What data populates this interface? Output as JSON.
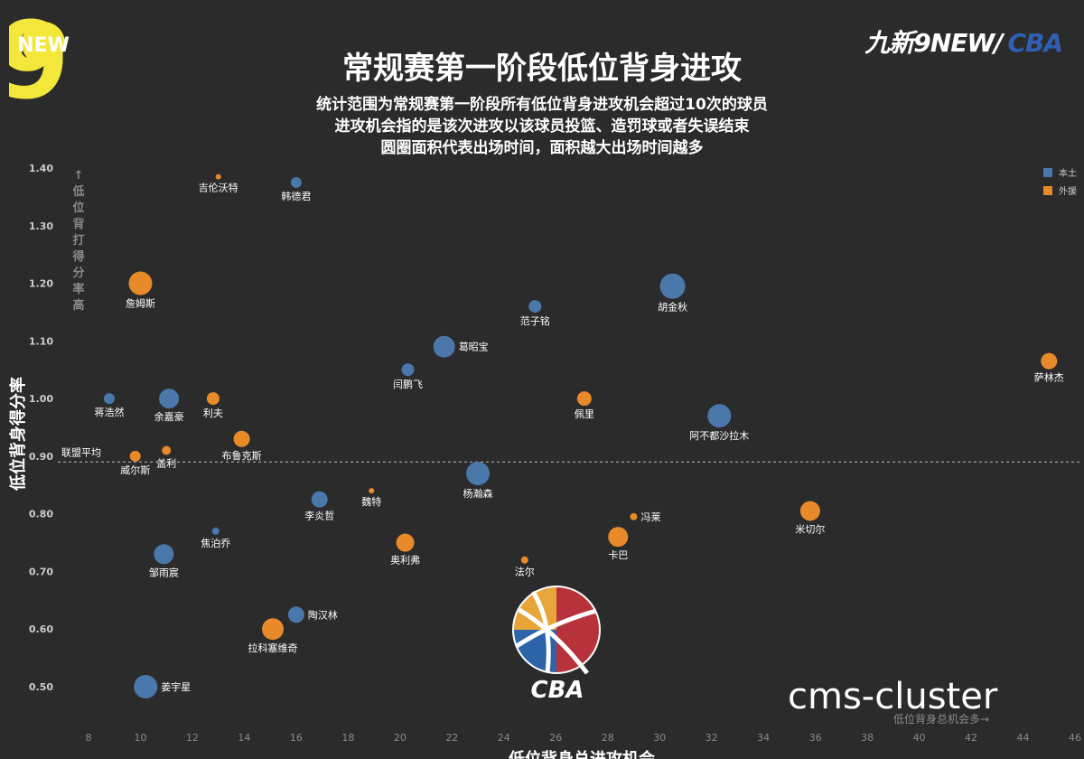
{
  "header": {
    "title": "常规赛第一阶段低位背身进攻",
    "subtitles": [
      "统计范围为常规赛第一阶段所有低位背身进攻机会超过10次的球员",
      "进攻机会指的是该次进攻以该球员投篮、造罚球或者失误结束",
      "圆圈面积代表出场时间，面积越大出场时间越多"
    ],
    "brand_prefix": "九新9NEW/",
    "brand_suffix": "CBA",
    "new9_logo_text": "NEW",
    "new9_logo_digit": "9"
  },
  "colors": {
    "background": "#2b2b2b",
    "domestic": "#4a78ab",
    "foreign": "#e8892a",
    "text": "#ffffff",
    "axis_text": "#cccccc",
    "dim_text": "#8a8a8a"
  },
  "chart_data": {
    "type": "scatter",
    "title": "常规赛第一阶段低位背身进攻",
    "xlabel": "低位背身总进攻机会",
    "ylabel": "低位背身得分率",
    "xlim": [
      8,
      46
    ],
    "ylim": [
      0.45,
      1.42
    ],
    "x_ticks": [
      8,
      10,
      12,
      14,
      16,
      18,
      20,
      22,
      24,
      26,
      28,
      30,
      32,
      34,
      36,
      38,
      40,
      42,
      44,
      46
    ],
    "y_ticks": [
      0.5,
      0.6,
      0.7,
      0.8,
      0.9,
      1.0,
      1.1,
      1.2,
      1.3,
      1.4
    ],
    "y_tick_labels": [
      "0.50",
      "0.60",
      "0.70",
      "0.80",
      "0.90",
      "1.00",
      "1.10",
      "1.20",
      "1.30",
      "1.40"
    ],
    "y_axis_hint": "↑低位背打得分率高",
    "x_axis_hint": "低位背身总机会多→",
    "reference_line": {
      "value": 0.89,
      "label": "联盟平均"
    },
    "legend": {
      "position": "top-right",
      "entries": [
        "本土",
        "外援"
      ]
    },
    "size_note": "圆圈面积代表出场时间",
    "series": [
      {
        "name": "本土",
        "points": [
          {
            "label": "韩德君",
            "x": 16.0,
            "y": 1.375,
            "size": 6
          },
          {
            "label": "范子铭",
            "x": 25.2,
            "y": 1.16,
            "size": 7
          },
          {
            "label": "胡金秋",
            "x": 30.5,
            "y": 1.195,
            "size": 14
          },
          {
            "label": "葛昭宝",
            "x": 21.7,
            "y": 1.09,
            "size": 12
          },
          {
            "label": "闫鹏飞",
            "x": 20.3,
            "y": 1.05,
            "size": 7
          },
          {
            "label": "阿不都沙拉木",
            "x": 32.3,
            "y": 0.97,
            "size": 13
          },
          {
            "label": "蒋浩然",
            "x": 8.8,
            "y": 1.0,
            "size": 6
          },
          {
            "label": "余嘉豪",
            "x": 11.1,
            "y": 1.0,
            "size": 11
          },
          {
            "label": "杨瀚森",
            "x": 23.0,
            "y": 0.87,
            "size": 13
          },
          {
            "label": "李炎哲",
            "x": 16.9,
            "y": 0.825,
            "size": 9
          },
          {
            "label": "焦泊乔",
            "x": 12.9,
            "y": 0.77,
            "size": 4
          },
          {
            "label": "邹雨宸",
            "x": 10.9,
            "y": 0.73,
            "size": 11
          },
          {
            "label": "陶汉林",
            "x": 16.0,
            "y": 0.625,
            "size": 9
          },
          {
            "label": "姜宇星",
            "x": 10.2,
            "y": 0.5,
            "size": 13
          }
        ]
      },
      {
        "name": "外援",
        "points": [
          {
            "label": "吉伦沃特",
            "x": 13.0,
            "y": 1.385,
            "size": 3
          },
          {
            "label": "詹姆斯",
            "x": 10.0,
            "y": 1.2,
            "size": 13
          },
          {
            "label": "利夫",
            "x": 12.8,
            "y": 1.0,
            "size": 7
          },
          {
            "label": "布鲁克斯",
            "x": 13.9,
            "y": 0.93,
            "size": 9
          },
          {
            "label": "威尔斯",
            "x": 9.8,
            "y": 0.9,
            "size": 6
          },
          {
            "label": "盖利",
            "x": 11.0,
            "y": 0.91,
            "size": 5
          },
          {
            "label": "魏特",
            "x": 18.9,
            "y": 0.84,
            "size": 3
          },
          {
            "label": "奥利弗",
            "x": 20.2,
            "y": 0.75,
            "size": 10
          },
          {
            "label": "佩里",
            "x": 27.1,
            "y": 1.0,
            "size": 8
          },
          {
            "label": "冯莱",
            "x": 29.0,
            "y": 0.795,
            "size": 4
          },
          {
            "label": "卡巴",
            "x": 28.4,
            "y": 0.76,
            "size": 11
          },
          {
            "label": "法尔",
            "x": 24.8,
            "y": 0.72,
            "size": 4
          },
          {
            "label": "拉科塞维奇",
            "x": 15.1,
            "y": 0.6,
            "size": 12
          },
          {
            "label": "米切尔",
            "x": 35.8,
            "y": 0.805,
            "size": 11
          },
          {
            "label": "萨林杰",
            "x": 45.0,
            "y": 1.065,
            "size": 9
          }
        ]
      }
    ]
  },
  "watermark": "cms-cluster"
}
